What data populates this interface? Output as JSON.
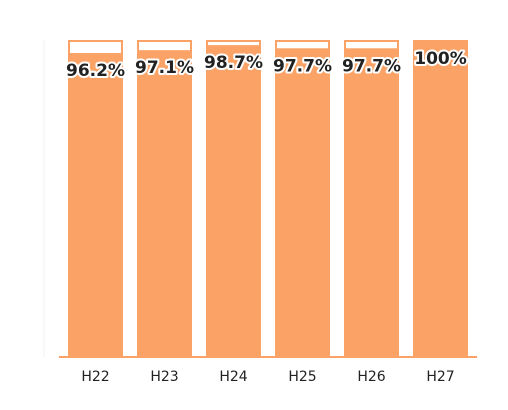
{
  "chart_data": {
    "type": "bar",
    "categories": [
      "H22",
      "H23",
      "H24",
      "H25",
      "H26",
      "H27"
    ],
    "values": [
      96.2,
      97.1,
      98.7,
      97.7,
      97.7,
      100
    ],
    "value_labels": [
      "96.2%",
      "97.1%",
      "98.7%",
      "97.7%",
      "97.7%",
      "100%"
    ],
    "color": "#fba367",
    "ylim": [
      0,
      100
    ]
  }
}
